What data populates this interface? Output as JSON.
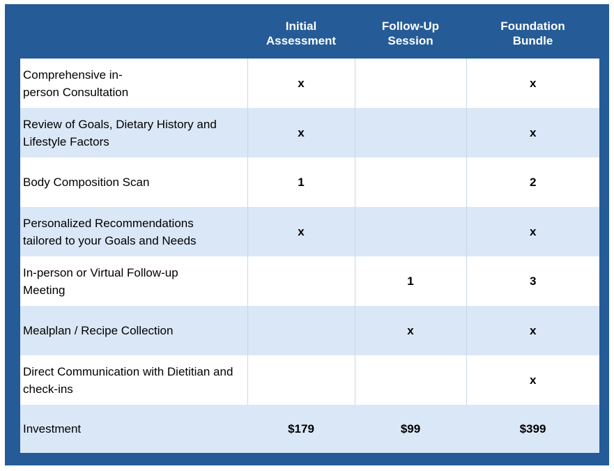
{
  "table": {
    "columns": [
      "",
      "Initial Assessment",
      "Follow-Up Session",
      "Foundation Bundle"
    ],
    "rows": [
      {
        "feature": "Comprehensive in-person Consultation",
        "initial": "x",
        "follow_up": "",
        "bundle": "x"
      },
      {
        "feature": "Review of Goals, Dietary History and Lifestyle Factors",
        "initial": "x",
        "follow_up": "",
        "bundle": "x"
      },
      {
        "feature": "Body Composition Scan",
        "initial": "1",
        "follow_up": "",
        "bundle": "2"
      },
      {
        "feature": "Personalized Recommendations tailored to your Goals and Needs",
        "initial": "x",
        "follow_up": "",
        "bundle": "x"
      },
      {
        "feature": "In-person or Virtual Follow-up Meeting",
        "initial": "",
        "follow_up": "1",
        "bundle": "3"
      },
      {
        "feature": "Mealplan / Recipe Collection",
        "initial": "",
        "follow_up": "x",
        "bundle": "x"
      },
      {
        "feature": "Direct Communication with Dietitian and check-ins",
        "initial": "",
        "follow_up": "",
        "bundle": "x"
      },
      {
        "feature": "Investment",
        "initial": "$179",
        "follow_up": "$99",
        "bundle": "$399"
      }
    ]
  },
  "colors": {
    "frame_blue": "#255b96",
    "alt_row": "#dae7f6",
    "header_text": "#ffffff"
  }
}
